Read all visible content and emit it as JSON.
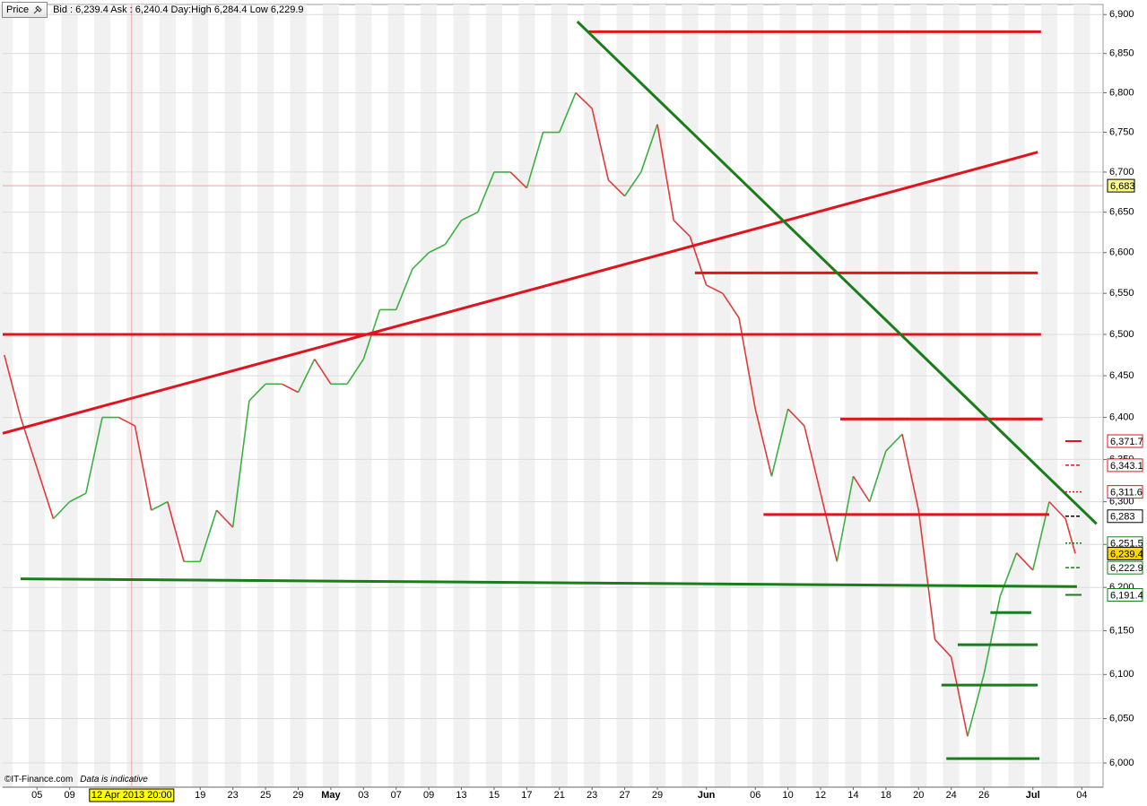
{
  "header": {
    "button": "Price",
    "quote": "Bid : 6,239.4  Ask : 6,240.4  Day:High 6,284.4  Low 6,229.9"
  },
  "footer": {
    "copyright": "©IT-Finance.com",
    "note": "Data is indicative"
  },
  "chart_data": {
    "type": "line",
    "log_scale": true,
    "grid": true,
    "x": [
      -2,
      -1,
      0,
      1,
      2,
      3,
      4,
      5,
      6,
      7,
      8,
      9,
      10,
      11,
      12,
      13,
      14,
      15,
      16,
      17,
      18,
      19,
      20,
      21,
      22,
      23,
      24,
      25,
      26,
      27,
      28,
      29,
      30,
      31,
      32,
      33,
      34,
      35,
      36,
      37,
      38,
      39,
      40,
      41,
      42,
      43,
      44,
      45,
      46,
      47,
      48,
      49,
      50,
      51,
      52,
      53,
      54,
      55,
      56,
      57,
      58,
      59,
      60,
      61,
      62,
      63,
      63.6
    ],
    "values": [
      6475,
      6400,
      6340,
      6280,
      6300,
      6310,
      6400,
      6400,
      6390,
      6290,
      6300,
      6230,
      6230,
      6290,
      6270,
      6420,
      6440,
      6440,
      6430,
      6470,
      6440,
      6440,
      6470,
      6530,
      6530,
      6580,
      6600,
      6610,
      6640,
      6650,
      6700,
      6700,
      6680,
      6750,
      6750,
      6800,
      6780,
      6690,
      6670,
      6700,
      6760,
      6640,
      6620,
      6560,
      6550,
      6520,
      6410,
      6330,
      6410,
      6390,
      6310,
      6230,
      6330,
      6300,
      6360,
      6380,
      6290,
      6140,
      6120,
      6030,
      6100,
      6190,
      6240,
      6220,
      6300,
      6280,
      6239.4
    ],
    "up_color": "#3cb043",
    "down_color": "#e03a3a",
    "xlim": [
      -2.1,
      65.3
    ],
    "ylim": [
      5973,
      6913
    ],
    "xticks": [
      {
        "value": 0,
        "label": "05"
      },
      {
        "value": 2,
        "label": "09"
      },
      {
        "value": 10,
        "label": "19"
      },
      {
        "value": 12,
        "label": "23"
      },
      {
        "value": 14,
        "label": "25"
      },
      {
        "value": 16,
        "label": "29"
      },
      {
        "value": 18,
        "label": "May"
      },
      {
        "value": 20,
        "label": "03"
      },
      {
        "value": 22,
        "label": "07"
      },
      {
        "value": 24,
        "label": "09"
      },
      {
        "value": 26,
        "label": "13"
      },
      {
        "value": 28,
        "label": "15"
      },
      {
        "value": 30,
        "label": "17"
      },
      {
        "value": 32,
        "label": "21"
      },
      {
        "value": 34,
        "label": "23"
      },
      {
        "value": 36,
        "label": "27"
      },
      {
        "value": 38,
        "label": "29"
      },
      {
        "value": 41,
        "label": "Jun"
      },
      {
        "value": 44,
        "label": "06"
      },
      {
        "value": 46,
        "label": "10"
      },
      {
        "value": 48,
        "label": "12"
      },
      {
        "value": 50,
        "label": "14"
      },
      {
        "value": 52,
        "label": "18"
      },
      {
        "value": 54,
        "label": "20"
      },
      {
        "value": 56,
        "label": "24"
      },
      {
        "value": 58,
        "label": "26"
      },
      {
        "value": 61,
        "label": "Jul"
      },
      {
        "value": 64,
        "label": "04"
      }
    ],
    "yticks": [
      {
        "value": 6000,
        "label": "6,000"
      },
      {
        "value": 6050,
        "label": "6,050"
      },
      {
        "value": 6100,
        "label": "6,100"
      },
      {
        "value": 6150,
        "label": "6,150"
      },
      {
        "value": 6200,
        "label": "6,200"
      },
      {
        "value": 6250,
        "label": "6,250"
      },
      {
        "value": 6300,
        "label": "6,300"
      },
      {
        "value": 6350,
        "label": "6,350"
      },
      {
        "value": 6400,
        "label": "6,400"
      },
      {
        "value": 6450,
        "label": "6,450"
      },
      {
        "value": 6500,
        "label": "6,500"
      },
      {
        "value": 6550,
        "label": "6,550"
      },
      {
        "value": 6600,
        "label": "6,600"
      },
      {
        "value": 6650,
        "label": "6,650"
      },
      {
        "value": 6700,
        "label": "6,700"
      },
      {
        "value": 6750,
        "label": "6,750"
      },
      {
        "value": 6800,
        "label": "6,800"
      },
      {
        "value": 6850,
        "label": "6,850"
      },
      {
        "value": 6900,
        "label": "6,900"
      }
    ],
    "trendlines": [
      {
        "color": "#e0141e",
        "x": [
          33.8,
          61.5
        ],
        "values": [
          6878,
          6878
        ]
      },
      {
        "color": "#e0141e",
        "x": [
          40.3,
          61.3
        ],
        "values": [
          6575,
          6575
        ]
      },
      {
        "color": "#e0141e",
        "x": [
          -2.1,
          61.5
        ],
        "values": [
          6500,
          6500
        ]
      },
      {
        "color": "#e0141e",
        "x": [
          49.2,
          61.6
        ],
        "values": [
          6398,
          6398
        ]
      },
      {
        "color": "#e0141e",
        "x": [
          44.5,
          62.0
        ],
        "values": [
          6285,
          6285
        ]
      },
      {
        "color": "#e0141e",
        "x": [
          -2.1,
          61.3
        ],
        "values": [
          6381,
          6725
        ]
      },
      {
        "color": "#1a7d1a",
        "x": [
          33.1,
          64.9
        ],
        "values": [
          6891,
          6274
        ]
      },
      {
        "color": "#1a7d1a",
        "x": [
          -1.0,
          63.7
        ],
        "values": [
          6210,
          6201
        ]
      },
      {
        "color": "#1a7d1a",
        "x": [
          58.4,
          60.9
        ],
        "values": [
          6171,
          6171
        ]
      },
      {
        "color": "#1a7d1a",
        "x": [
          56.4,
          61.3
        ],
        "values": [
          6134,
          6134
        ]
      },
      {
        "color": "#1a7d1a",
        "x": [
          55.4,
          61.3
        ],
        "values": [
          6088,
          6088
        ]
      },
      {
        "color": "#1a7d1a",
        "x": [
          55.7,
          61.4
        ],
        "values": [
          6005,
          6005
        ]
      }
    ],
    "levels": [
      {
        "value": 6371.7,
        "label": "6,371.7",
        "color": "#e0141e",
        "style": "solid"
      },
      {
        "value": 6343.1,
        "label": "6,343.1",
        "color": "#e0141e",
        "style": "dashed"
      },
      {
        "value": 6311.6,
        "label": "6,311.6",
        "color": "#e0141e",
        "style": "dotted"
      },
      {
        "value": 6283,
        "label": "6,283",
        "color": "#000000",
        "style": "dashed"
      },
      {
        "value": 6251.5,
        "label": "6,251.5",
        "color": "#1a7d1a",
        "style": "dotted"
      },
      {
        "value": 6239.4,
        "label": "6,239.4",
        "color": "#ffd700",
        "style": "current"
      },
      {
        "value": 6222.9,
        "label": "6,222.9",
        "color": "#1a7d1a",
        "style": "dashed"
      },
      {
        "value": 6191.4,
        "label": "6,191.4",
        "color": "#1a7d1a",
        "style": "solid"
      }
    ],
    "crosshair": {
      "x": {
        "value": 5.8,
        "label": "12 Apr 2013 20:00"
      },
      "y": {
        "value": 6683,
        "label": "6,683"
      },
      "color": "#f2a0a0"
    }
  }
}
